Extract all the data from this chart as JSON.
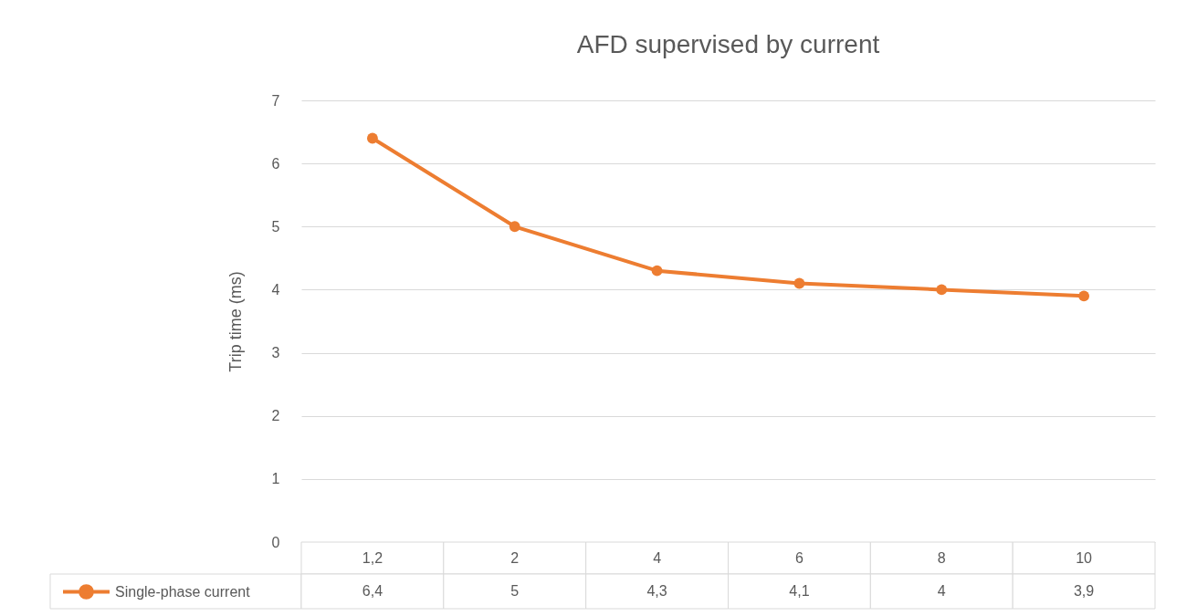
{
  "chart_data": {
    "type": "line",
    "title": "AFD supervised by current",
    "ylabel": "Trip time (ms)",
    "categories": [
      "1,2",
      "2",
      "4",
      "6",
      "8",
      "10"
    ],
    "series": [
      {
        "name": "Single-phase current",
        "color": "#ed7d31",
        "values": [
          6.4,
          5,
          4.3,
          4.1,
          4,
          3.9
        ],
        "value_labels": [
          "6,4",
          "5",
          "4,3",
          "4,1",
          "4",
          "3,9"
        ]
      }
    ],
    "ylim": [
      0,
      7
    ],
    "yticks": [
      0,
      1,
      2,
      3,
      4,
      5,
      6,
      7
    ],
    "grid": "y",
    "legend": "bottom",
    "marker": "circle",
    "line_style": "solid"
  }
}
